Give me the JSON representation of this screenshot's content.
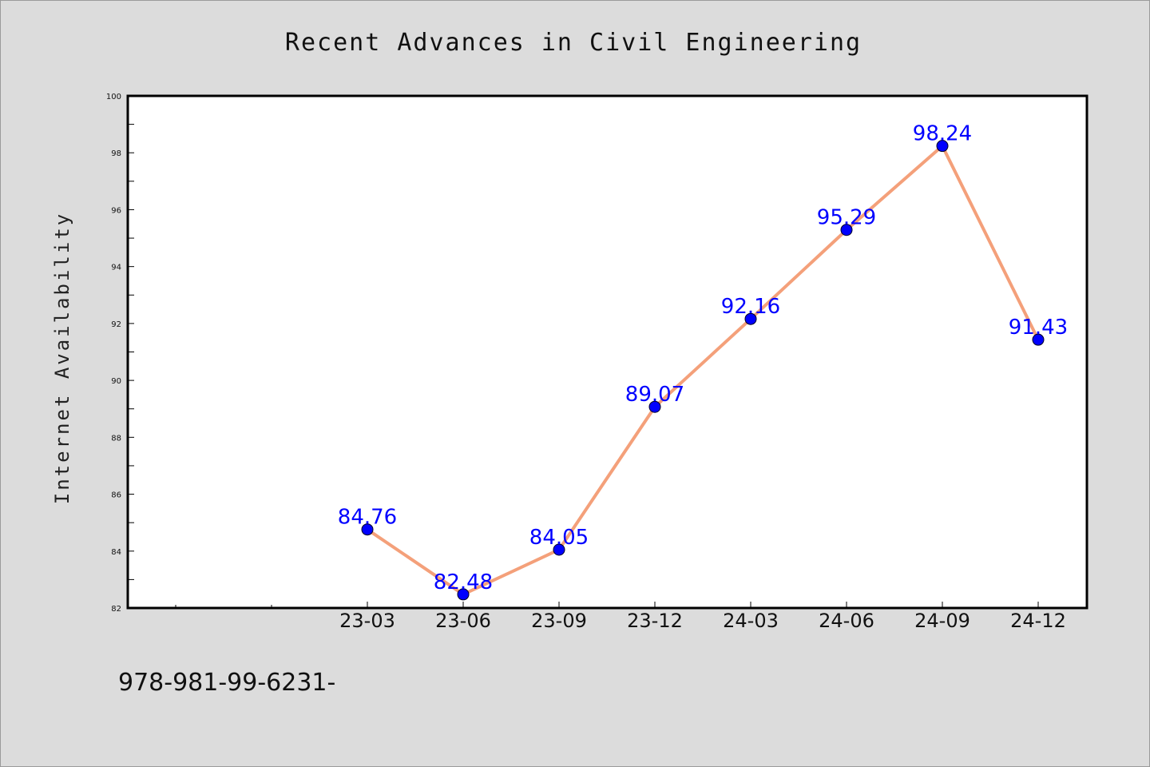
{
  "chart_data": {
    "type": "line",
    "title": "Recent Advances in Civil Engineering",
    "xlabel": "",
    "ylabel": "Internet Availability",
    "categories": [
      "23-03",
      "23-06",
      "23-09",
      "23-12",
      "24-03",
      "24-06",
      "24-09",
      "24-12"
    ],
    "series": [
      {
        "values": [
          84.76,
          82.48,
          84.05,
          89.07,
          92.16,
          95.29,
          98.24,
          91.43
        ],
        "color": "#f4a07a",
        "marker_color": "#0000ff"
      }
    ],
    "data_labels": [
      "84.76",
      "82.48",
      "84.05",
      "89.07",
      "92.16",
      "95.29",
      "98.24",
      "91.43"
    ],
    "ylim": [
      82,
      100
    ],
    "yticks": [
      82,
      84,
      86,
      88,
      90,
      92,
      94,
      96,
      98,
      100
    ],
    "grid": false,
    "legend": "none"
  },
  "footer": {
    "text": "978-981-99-6231-"
  },
  "colors": {
    "background": "#dcdcdc",
    "plot_background": "#ffffff",
    "line": "#f4a07a",
    "marker": "#0000ff",
    "data_label": "#0000ff"
  }
}
